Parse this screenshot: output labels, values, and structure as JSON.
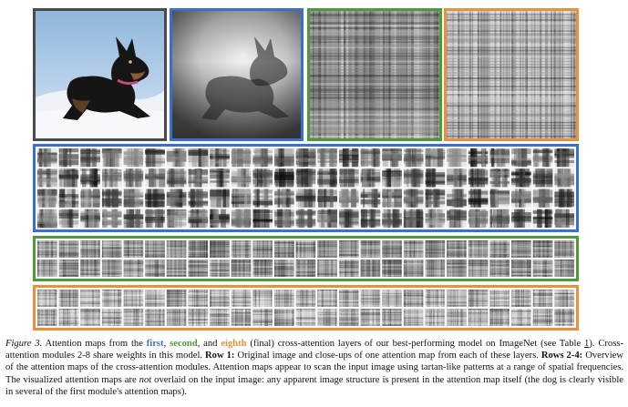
{
  "figure": {
    "caption": {
      "figure_label": "Figure 3.",
      "part1": " Attention maps from the ",
      "first": "first",
      "sep1": ", ",
      "second": "second",
      "sep2": ", and ",
      "eighth": "eighth",
      "part2": " (final) cross-attention layers of our best-performing model on ImageNet (see Table ",
      "table_ref": "1",
      "part3": "). Cross-attention modules 2-8 share weights in this model. ",
      "row1_label": "Row 1:",
      "part4": " Original image and close-ups of one attention map from each of these layers. ",
      "rows_label": "Rows 2-4:",
      "part5": " Overview of the attention maps of the cross-attention modules. Attention maps appear to scan the input image using tartan-like patterns at a range of spatial frequencies. The visualized attention maps are ",
      "not_word": "not",
      "part6": " overlaid on the input image: any apparent image structure is present in the attention map itself (the dog is clearly visible in several of the first module's attention maps)."
    },
    "colors": {
      "first": "#3a6fd0",
      "second": "#4e9a3a",
      "eighth": "#e8913c",
      "original": "#4a4a4a"
    }
  }
}
